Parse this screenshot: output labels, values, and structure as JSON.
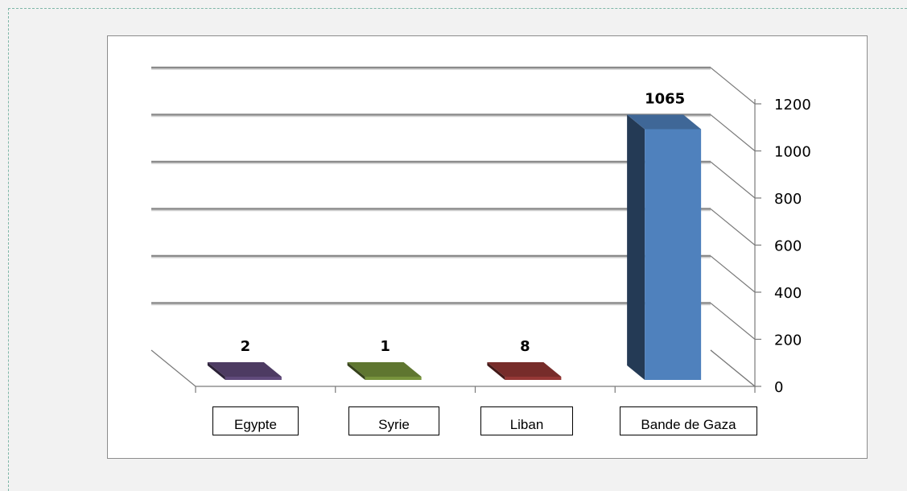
{
  "chart_data": {
    "type": "bar",
    "three_d": true,
    "categories": [
      "Egypte",
      "Syrie",
      "Liban",
      "Bande de Gaza"
    ],
    "values": [
      2,
      1,
      8,
      1065
    ],
    "data_labels": [
      "2",
      "1",
      "8",
      "1065"
    ],
    "ylim": [
      0,
      1200
    ],
    "yticks": [
      "0",
      "200",
      "400",
      "600",
      "800",
      "1000",
      "1200"
    ],
    "y_axis_position": "right",
    "gridlines": true,
    "legend": "none",
    "title": "",
    "xlabel": "",
    "ylabel": "",
    "colors": {
      "Egypte": "#604a7b",
      "Syrie": "#77933c",
      "Liban": "#953735",
      "Bande de Gaza": "#4f81bd"
    }
  }
}
